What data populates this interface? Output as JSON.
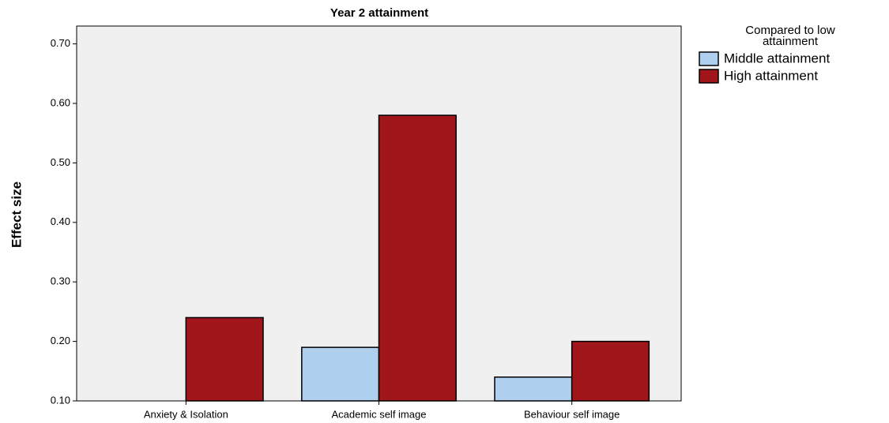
{
  "chart_data": {
    "type": "bar",
    "title": "Year 2 attainment",
    "y_label": "Effect size",
    "legend_title": "Compared to low attainment",
    "categories": [
      "Anxiety & Isolation",
      "Academic self image",
      "Behaviour self image"
    ],
    "series": [
      {
        "name": "Middle attainment",
        "color": "#aecfee",
        "values": [
          0.1,
          0.19,
          0.14
        ]
      },
      {
        "name": "High attainment",
        "color": "#a0161b",
        "values": [
          0.24,
          0.58,
          0.2
        ]
      }
    ],
    "ylim": [
      0.1,
      0.73
    ],
    "yticks": [
      {
        "value": 0.1,
        "label": "0.10"
      },
      {
        "value": 0.2,
        "label": "0.20"
      },
      {
        "value": 0.3,
        "label": "0.30"
      },
      {
        "value": 0.4,
        "label": "0.40"
      },
      {
        "value": 0.5,
        "label": "0.50"
      },
      {
        "value": 0.6,
        "label": "0.60"
      },
      {
        "value": 0.7,
        "label": "0.70"
      }
    ],
    "grid": false,
    "legend": "right"
  }
}
